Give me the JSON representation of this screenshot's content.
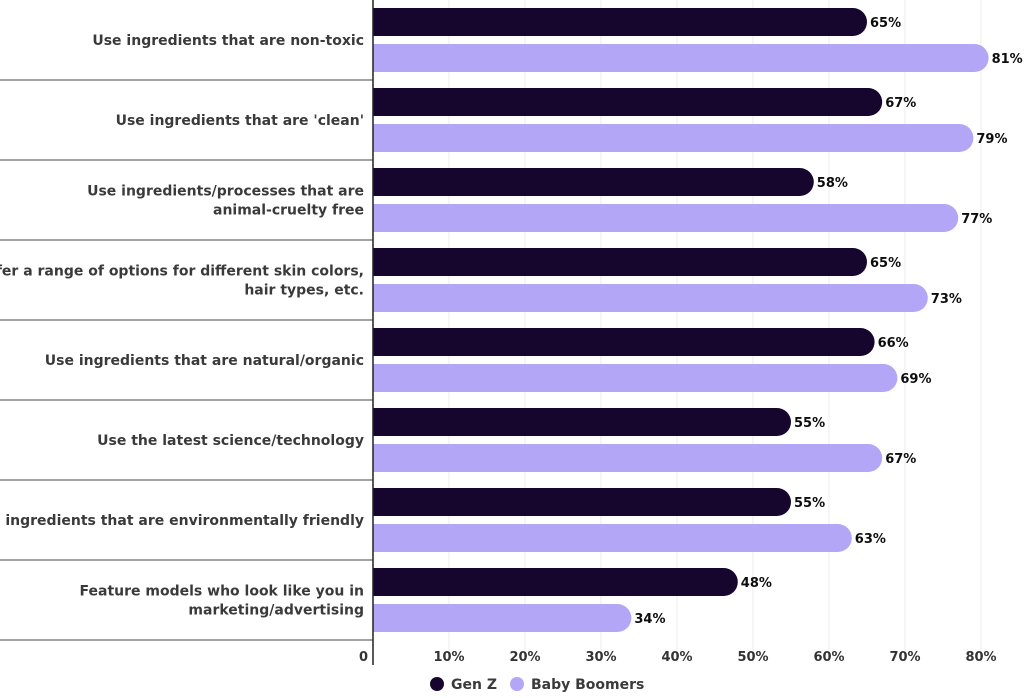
{
  "chart_data": {
    "type": "bar",
    "orientation": "horizontal",
    "categories": [
      [
        "Use ingredients that are non-toxic"
      ],
      [
        "Use ingredients that are 'clean'"
      ],
      [
        "Use ingredients/processes that are",
        "animal-cruelty free"
      ],
      [
        "Offer a range of options for different skin colors,",
        "hair types, etc."
      ],
      [
        "Use ingredients that are natural/organic"
      ],
      [
        "Use the latest science/technology"
      ],
      [
        "Use ingredients that are environmentally friendly"
      ],
      [
        "Feature models who look like you in",
        "marketing/advertising"
      ]
    ],
    "series": [
      {
        "name": "Gen Z",
        "color": "#16062e",
        "values": [
          65,
          67,
          58,
          65,
          66,
          55,
          55,
          48
        ]
      },
      {
        "name": "Baby Boomers",
        "color": "#b3a6f7",
        "values": [
          81,
          79,
          77,
          73,
          69,
          67,
          63,
          34
        ]
      }
    ],
    "xlim": [
      0,
      85
    ],
    "xticks": [
      {
        "value": 0,
        "label": "0"
      },
      {
        "value": 10,
        "label": "10%"
      },
      {
        "value": 20,
        "label": "20%"
      },
      {
        "value": 30,
        "label": "30%"
      },
      {
        "value": 40,
        "label": "40%"
      },
      {
        "value": 50,
        "label": "50%"
      },
      {
        "value": 60,
        "label": "60%"
      },
      {
        "value": 70,
        "label": "70%"
      },
      {
        "value": 80,
        "label": "80%"
      }
    ],
    "value_suffix": "%",
    "grid": true,
    "legend_position": "bottom-center"
  }
}
